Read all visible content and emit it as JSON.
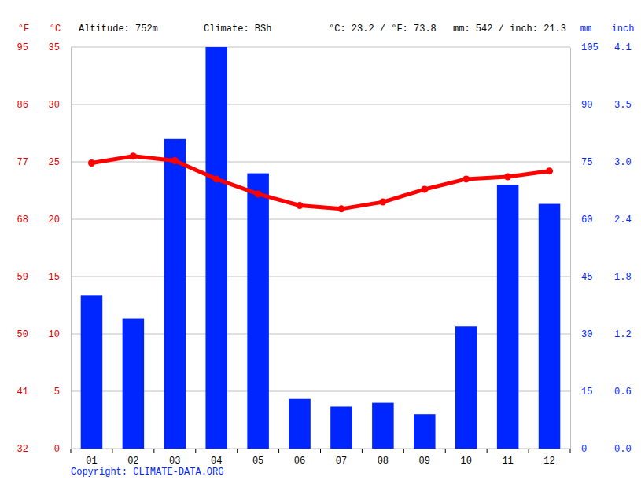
{
  "chart_data": {
    "type": "bar",
    "annotations": [
      "Altitude: 752m",
      "Climate: BSh",
      "°C: 23.2 / °F: 73.8",
      "mm: 542 / inch: 21.3"
    ],
    "source": "Copyright: CLIMATE-DATA.ORG",
    "categories": [
      "01",
      "02",
      "03",
      "04",
      "05",
      "06",
      "07",
      "08",
      "09",
      "10",
      "11",
      "12"
    ],
    "series": [
      {
        "type": "bar",
        "axis": "y2",
        "color": "#0026ff",
        "values": [
          40,
          34,
          81,
          105,
          72,
          13,
          11,
          12,
          9,
          32,
          69,
          64
        ]
      },
      {
        "type": "line",
        "color": "#ff0000",
        "marker": "circle",
        "values": [
          24.9,
          25.5,
          25.1,
          23.5,
          22.2,
          21.2,
          20.9,
          21.5,
          22.6,
          23.5,
          23.7,
          24.2
        ]
      }
    ],
    "ylabel": "°C",
    "ylim": [
      0,
      35
    ],
    "yticks": [
      0,
      5,
      10,
      15,
      20,
      25,
      30,
      35
    ],
    "ylabel_alt": "°F",
    "yticks_alt": [
      {
        "value": 0,
        "label": "32"
      },
      {
        "value": 5,
        "label": "41"
      },
      {
        "value": 10,
        "label": "50"
      },
      {
        "value": 15,
        "label": "59"
      },
      {
        "value": 20,
        "label": "68"
      },
      {
        "value": 25,
        "label": "77"
      },
      {
        "value": 30,
        "label": "86"
      },
      {
        "value": 35,
        "label": "95"
      }
    ],
    "y2label": "mm",
    "y2lim": [
      0,
      105
    ],
    "y2ticks": [
      0,
      15,
      30,
      45,
      60,
      75,
      90,
      105
    ],
    "y2label_alt": "inch",
    "y2ticks_alt": [
      {
        "value": 0,
        "label": "0.0"
      },
      {
        "value": 15,
        "label": "0.6"
      },
      {
        "value": 30,
        "label": "1.2"
      },
      {
        "value": 45,
        "label": "1.8"
      },
      {
        "value": 60,
        "label": "2.4"
      },
      {
        "value": 75,
        "label": "3.0"
      },
      {
        "value": 90,
        "label": "3.5"
      },
      {
        "value": 105,
        "label": "4.1"
      }
    ],
    "grid": true
  }
}
